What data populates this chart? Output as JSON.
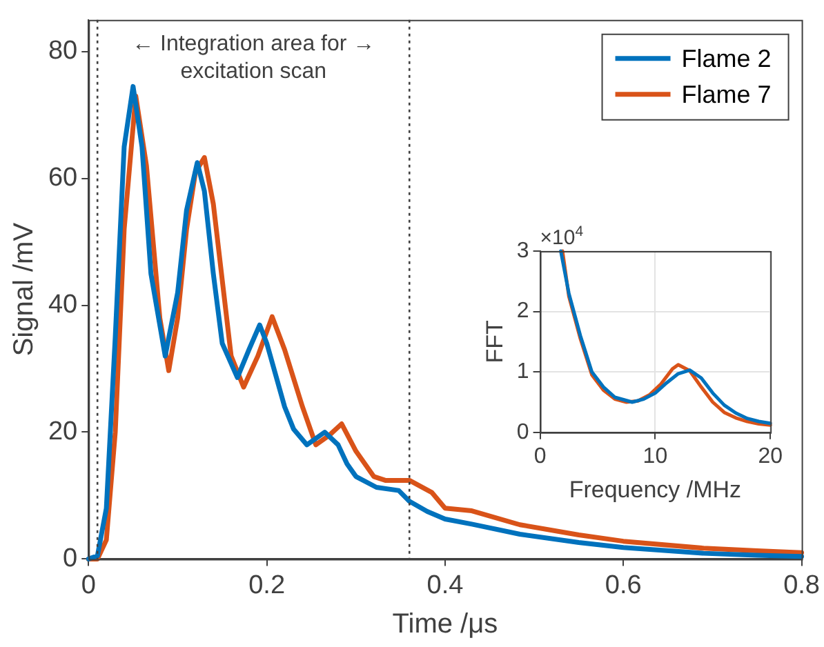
{
  "chart_data": [
    {
      "type": "line",
      "xlabel": "Time /μs",
      "ylabel": "Signal /mV",
      "xlim": [
        0,
        0.8
      ],
      "xticks": [
        0,
        0.2,
        0.4,
        0.6,
        0.8
      ],
      "ylim": [
        0,
        85
      ],
      "yticks": [
        0,
        20,
        40,
        60,
        80
      ],
      "grid": false,
      "legend": "top right",
      "marker": "none",
      "line_style": "solid",
      "annotations": [
        "← Integration area for →\nexcitation scan"
      ],
      "ref_lines": [
        {
          "axis": "x",
          "value": 0.01,
          "color": "#404040",
          "line_style": "dotted"
        },
        {
          "axis": "x",
          "value": 0.36,
          "color": "#404040",
          "line_style": "dotted"
        }
      ],
      "series": [
        {
          "name": "Flame 2",
          "color": "#0072bd",
          "x": [
            0,
            0.01,
            0.02,
            0.03,
            0.04,
            0.05,
            0.06,
            0.07,
            0.086,
            0.1,
            0.11,
            0.122,
            0.13,
            0.14,
            0.15,
            0.167,
            0.18,
            0.192,
            0.2,
            0.21,
            0.22,
            0.23,
            0.245,
            0.265,
            0.28,
            0.29,
            0.3,
            0.323,
            0.348,
            0.36,
            0.38,
            0.4,
            0.43,
            0.484,
            0.55,
            0.6,
            0.69,
            0.75,
            0.8
          ],
          "values": [
            0,
            0.5,
            8,
            35,
            65,
            74.5,
            65,
            45,
            32,
            42,
            55,
            62.5,
            58,
            45,
            34,
            28.6,
            33,
            36.9,
            34,
            29,
            24,
            20.5,
            18,
            20,
            18,
            15,
            13,
            11.3,
            10.8,
            9.1,
            7.5,
            6.3,
            5.5,
            3.9,
            2.6,
            1.8,
            0.9,
            0.6,
            0.4
          ]
        },
        {
          "name": "Flame 7",
          "color": "#d95319",
          "x": [
            0,
            0.01,
            0.02,
            0.03,
            0.04,
            0.053,
            0.065,
            0.08,
            0.09,
            0.1,
            0.11,
            0.12,
            0.13,
            0.14,
            0.15,
            0.16,
            0.174,
            0.19,
            0.206,
            0.22,
            0.24,
            0.255,
            0.27,
            0.284,
            0.3,
            0.32,
            0.333,
            0.36,
            0.385,
            0.4,
            0.43,
            0.484,
            0.55,
            0.6,
            0.69,
            0.75,
            0.8
          ],
          "values": [
            0,
            0,
            3,
            20,
            52,
            73,
            62,
            38,
            29.7,
            38,
            52,
            61,
            63.3,
            56,
            44,
            32,
            27.1,
            32,
            38.2,
            33,
            24,
            18,
            19.5,
            21.3,
            17,
            13,
            12.4,
            12.4,
            10.5,
            8,
            7.6,
            5.4,
            3.8,
            2.8,
            1.7,
            1.3,
            1
          ]
        }
      ]
    },
    {
      "type": "line",
      "xlabel": "Frequency /MHz",
      "ylabel": "FFT",
      "xlim": [
        0,
        20
      ],
      "xticks": [
        0,
        10,
        20
      ],
      "ylim": [
        0,
        3
      ],
      "yticks": [
        0,
        1,
        2,
        3
      ],
      "grid": true,
      "marker": "none",
      "line_style": "solid",
      "annotations": [
        "×10$^{4}$"
      ],
      "series": [
        {
          "color": "#0072bd",
          "x": [
            1.8,
            2.5,
            3.5,
            4.5,
            5.5,
            6.5,
            8,
            9,
            10,
            11,
            12,
            13,
            14,
            15,
            16,
            17,
            18,
            19,
            20
          ],
          "values": [
            3,
            2.3,
            1.6,
            1,
            0.75,
            0.58,
            0.5,
            0.55,
            0.65,
            0.82,
            0.97,
            1.03,
            0.9,
            0.65,
            0.45,
            0.32,
            0.23,
            0.18,
            0.15
          ]
        },
        {
          "color": "#d95319",
          "x": [
            1.95,
            2.5,
            3.5,
            4.5,
            5.5,
            6.5,
            7.5,
            8.5,
            9.5,
            10.5,
            11.5,
            12,
            13,
            14,
            15,
            16,
            17,
            18,
            19,
            20
          ],
          "values": [
            3,
            2.25,
            1.55,
            0.95,
            0.7,
            0.55,
            0.5,
            0.52,
            0.62,
            0.8,
            1.05,
            1.12,
            1.02,
            0.75,
            0.5,
            0.33,
            0.24,
            0.18,
            0.14,
            0.12
          ]
        }
      ]
    }
  ]
}
